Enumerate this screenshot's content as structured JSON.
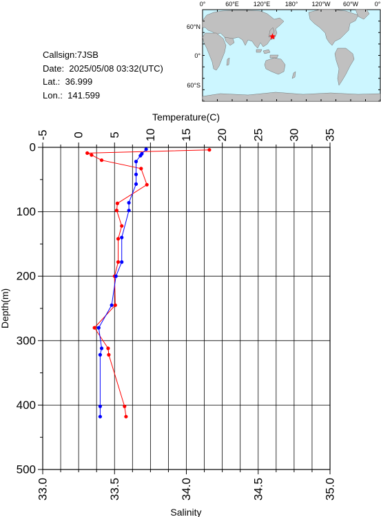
{
  "info": {
    "callsign": "Callsign:7JSB",
    "date": "Date:  2025/05/08 03:32(UTC)",
    "lat": "Lat.:  36.999",
    "lon": "Lon.:  141.599"
  },
  "map": {
    "lon_labels": [
      "0°",
      "60°E",
      "120°E",
      "180°",
      "120°W",
      "60°W",
      "0°"
    ],
    "lat_labels": [
      "60°N",
      "0°",
      "60°S"
    ],
    "marker_lon": 141.599,
    "marker_lat": 36.999,
    "ocean_color": "#ccf6ff",
    "land_color": "#c0c0c0",
    "marker_color": "#ff0000"
  },
  "chart_data": {
    "type": "line",
    "top_axis": {
      "label": "Temperature(C)",
      "range": [
        -5,
        35
      ],
      "ticks": [
        "-5",
        "0",
        "5",
        "10",
        "15",
        "20",
        "25",
        "30",
        "35"
      ]
    },
    "bottom_axis": {
      "label": "Salinity",
      "range": [
        33.0,
        35.0
      ],
      "ticks": [
        "33.0",
        "33.5",
        "34.0",
        "34.5",
        "35.0"
      ]
    },
    "y_axis": {
      "label": "Depth(m)",
      "range": [
        0,
        500
      ],
      "inverted": true,
      "ticks": [
        "0",
        "100",
        "200",
        "300",
        "400",
        "500"
      ]
    },
    "grid": true,
    "series": [
      {
        "quantity": "temperature",
        "color": "#ff0000",
        "points": [
          {
            "depth": 4,
            "value": 18.2
          },
          {
            "depth": 9,
            "value": 1.2
          },
          {
            "depth": 12,
            "value": 1.8
          },
          {
            "depth": 20,
            "value": 3.2
          },
          {
            "depth": 33,
            "value": 8.7
          },
          {
            "depth": 58,
            "value": 9.5
          },
          {
            "depth": 87,
            "value": 5.4
          },
          {
            "depth": 98,
            "value": 5.3
          },
          {
            "depth": 122,
            "value": 6.0
          },
          {
            "depth": 142,
            "value": 5.5
          },
          {
            "depth": 178,
            "value": 5.5
          },
          {
            "depth": 200,
            "value": 5.0
          },
          {
            "depth": 245,
            "value": 5.1
          },
          {
            "depth": 280,
            "value": 2.2
          },
          {
            "depth": 312,
            "value": 4.1
          },
          {
            "depth": 322,
            "value": 4.2
          },
          {
            "depth": 402,
            "value": 6.4
          },
          {
            "depth": 418,
            "value": 6.6
          }
        ]
      },
      {
        "quantity": "salinity",
        "color": "#0000ff",
        "points": [
          {
            "depth": 3,
            "value": 33.72
          },
          {
            "depth": 10,
            "value": 33.69
          },
          {
            "depth": 13,
            "value": 33.68
          },
          {
            "depth": 22,
            "value": 33.65
          },
          {
            "depth": 42,
            "value": 33.65
          },
          {
            "depth": 57,
            "value": 33.65
          },
          {
            "depth": 86,
            "value": 33.6
          },
          {
            "depth": 98,
            "value": 33.6
          },
          {
            "depth": 140,
            "value": 33.55
          },
          {
            "depth": 178,
            "value": 33.55
          },
          {
            "depth": 200,
            "value": 33.51
          },
          {
            "depth": 245,
            "value": 33.48
          },
          {
            "depth": 280,
            "value": 33.39
          },
          {
            "depth": 312,
            "value": 33.41
          },
          {
            "depth": 322,
            "value": 33.4
          },
          {
            "depth": 402,
            "value": 33.4
          },
          {
            "depth": 418,
            "value": 33.4
          }
        ]
      }
    ]
  }
}
